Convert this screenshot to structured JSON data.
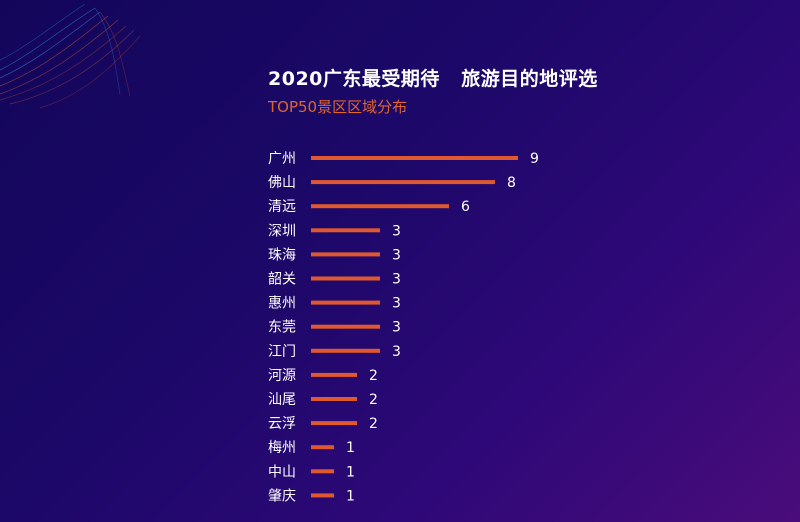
{
  "header": {
    "title": "2020广东最受期待   旅游目的地评选",
    "subtitle": "TOP50景区区域分布"
  },
  "colors": {
    "bar": "#e0582f",
    "label": "#ffffff",
    "accent": "#e0652e"
  },
  "chart_data": {
    "type": "bar",
    "orientation": "horizontal",
    "title": "2020广东最受期待   旅游目的地评选",
    "subtitle": "TOP50景区区域分布",
    "categories": [
      "广州",
      "佛山",
      "清远",
      "深圳",
      "珠海",
      "韶关",
      "惠州",
      "东莞",
      "江门",
      "河源",
      "汕尾",
      "云浮",
      "梅州",
      "中山",
      "肇庆"
    ],
    "values": [
      9,
      8,
      6,
      3,
      3,
      3,
      3,
      3,
      3,
      2,
      2,
      2,
      1,
      1,
      1
    ],
    "xlim": [
      0,
      9
    ],
    "grid": false,
    "legend": "none",
    "data_labels": true
  }
}
